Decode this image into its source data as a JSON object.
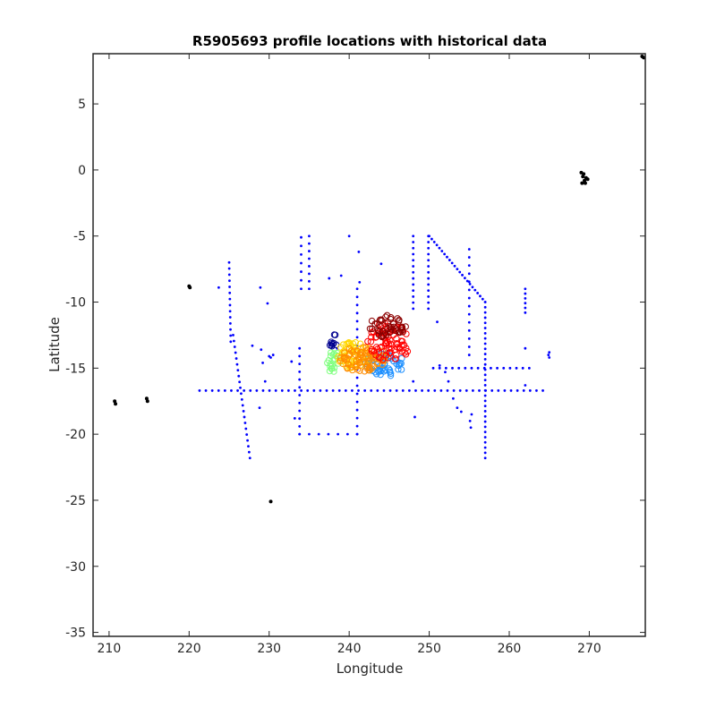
{
  "chart_data": {
    "type": "scatter",
    "title": "R5905693 profile locations with historical data",
    "xlabel": "Longitude",
    "ylabel": "Latitude",
    "xlim": [
      208,
      277
    ],
    "ylim": [
      -35.3,
      8.8
    ],
    "xticks": [
      210,
      220,
      230,
      240,
      250,
      260,
      270
    ],
    "yticks": [
      5,
      0,
      -5,
      -10,
      -15,
      -20,
      -25,
      -30,
      -35
    ],
    "grid": false,
    "legend": "none",
    "series": [
      {
        "role": "land",
        "color": "#000000",
        "points": [
          [
            210.7,
            -17.5
          ],
          [
            210.8,
            -17.7
          ],
          [
            214.7,
            -17.3
          ],
          [
            214.8,
            -17.5
          ],
          [
            220.1,
            -8.9
          ],
          [
            220.0,
            -8.8
          ],
          [
            230.2,
            -25.1
          ],
          [
            269.0,
            -0.2
          ],
          [
            269.2,
            -0.5
          ],
          [
            269.4,
            -0.8
          ],
          [
            269.6,
            -0.6
          ],
          [
            269.1,
            -1.0
          ],
          [
            269.3,
            -0.3
          ],
          [
            269.8,
            -0.7
          ],
          [
            269.5,
            -1.0
          ],
          [
            276.6,
            8.6
          ],
          [
            276.8,
            8.5
          ]
        ]
      },
      {
        "role": "historical",
        "color": "#0000ff",
        "lines": [
          {
            "from": [
              221.3,
              -16.7
            ],
            "to": [
              264.2,
              -16.7
            ],
            "step": 0.8
          },
          {
            "from": [
              225.0,
              -7.0
            ],
            "to": [
              225.2,
              -13.0
            ],
            "step": 0.45
          },
          {
            "from": [
              225.5,
              -12.5
            ],
            "to": [
              227.6,
              -21.8
            ],
            "step": 0.45
          },
          {
            "from": [
              250.0,
              -5.0
            ],
            "to": [
              257.0,
              -10.0
            ],
            "step": 0.4
          },
          {
            "from": [
              257.0,
              -10.0
            ],
            "to": [
              257.0,
              -21.8
            ],
            "step": 0.4
          },
          {
            "from": [
              248.0,
              -5.0
            ],
            "to": [
              248.0,
              -10.5
            ],
            "step": 0.45
          },
          {
            "from": [
              249.9,
              -5.0
            ],
            "to": [
              249.9,
              -10.5
            ],
            "step": 0.45
          },
          {
            "from": [
              241.0,
              -9.0
            ],
            "to": [
              241.0,
              -20.0
            ],
            "step": 0.6
          },
          {
            "from": [
              233.8,
              -13.5
            ],
            "to": [
              233.8,
              -20.0
            ],
            "step": 0.6
          },
          {
            "from": [
              250.5,
              -15.0
            ],
            "to": [
              262.5,
              -15.0
            ],
            "step": 0.8
          },
          {
            "from": [
              255.0,
              -6.0
            ],
            "to": [
              255.0,
              -14.0
            ],
            "step": 0.6
          },
          {
            "from": [
              262.0,
              -9.0
            ],
            "to": [
              262.0,
              -10.8
            ],
            "step": 0.4
          },
          {
            "from": [
              235.0,
              -5.0
            ],
            "to": [
              235.0,
              -9.0
            ],
            "step": 0.6
          },
          {
            "from": [
              234.0,
              -5.1
            ],
            "to": [
              234.0,
              -9.0
            ],
            "step": 0.7
          },
          {
            "from": [
              233.8,
              -20.0
            ],
            "to": [
              241.0,
              -20.0
            ],
            "step": 1.2
          }
        ],
        "points": [
          [
            223.7,
            -8.9
          ],
          [
            228.9,
            -8.9
          ],
          [
            229.8,
            -10.1
          ],
          [
            227.9,
            -13.3
          ],
          [
            229.0,
            -13.6
          ],
          [
            230.0,
            -14.1
          ],
          [
            230.2,
            -14.2
          ],
          [
            229.2,
            -14.6
          ],
          [
            229.5,
            -16.0
          ],
          [
            228.8,
            -18.0
          ],
          [
            230.5,
            -14.0
          ],
          [
            232.8,
            -14.5
          ],
          [
            233.2,
            -18.8
          ],
          [
            237.5,
            -8.2
          ],
          [
            239.0,
            -8.0
          ],
          [
            238.5,
            -13.5
          ],
          [
            240.0,
            -5.0
          ],
          [
            241.2,
            -6.2
          ],
          [
            241.3,
            -8.5
          ],
          [
            244.0,
            -7.1
          ],
          [
            248.2,
            -18.7
          ],
          [
            248.0,
            -16.0
          ],
          [
            251.0,
            -11.5
          ],
          [
            251.3,
            -14.8
          ],
          [
            252.0,
            -15.3
          ],
          [
            252.4,
            -16.0
          ],
          [
            253.0,
            -17.3
          ],
          [
            253.5,
            -18.0
          ],
          [
            254.0,
            -18.3
          ],
          [
            255.1,
            -19.0
          ],
          [
            255.2,
            -19.5
          ],
          [
            255.3,
            -18.5
          ],
          [
            262.0,
            -13.5
          ],
          [
            262.0,
            -16.3
          ],
          [
            264.9,
            -14.0
          ],
          [
            265.0,
            -13.8
          ],
          [
            265.0,
            -14.2
          ]
        ]
      },
      {
        "role": "profiles",
        "cluster_colors": [
          "#00008f",
          "#1e90ff",
          "#7fff7f",
          "#ffd700",
          "#ff8c00",
          "#ff0000",
          "#8b0000"
        ],
        "clusters": [
          {
            "color": "#00008f",
            "center": [
              238.0,
              -12.9
            ],
            "spread": [
              0.6,
              0.5
            ],
            "count": 10
          },
          {
            "color": "#1e90ff",
            "center": [
              244.5,
              -14.7
            ],
            "spread": [
              2.5,
              0.9
            ],
            "count": 55
          },
          {
            "color": "#7fff7f",
            "center": [
              238.0,
              -14.5
            ],
            "spread": [
              0.8,
              0.9
            ],
            "count": 20
          },
          {
            "color": "#ffd700",
            "center": [
              240.5,
              -14.0
            ],
            "spread": [
              2.0,
              1.0
            ],
            "count": 50
          },
          {
            "color": "#ff8c00",
            "center": [
              241.8,
              -14.3
            ],
            "spread": [
              3.0,
              1.0
            ],
            "count": 80
          },
          {
            "color": "#ff0000",
            "center": [
              245.0,
              -13.0
            ],
            "spread": [
              2.7,
              1.5
            ],
            "count": 80
          },
          {
            "color": "#8b0000",
            "center": [
              244.8,
              -11.8
            ],
            "spread": [
              2.3,
              0.9
            ],
            "count": 45
          }
        ]
      }
    ]
  }
}
